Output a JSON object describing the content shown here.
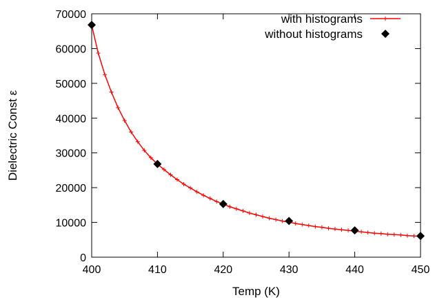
{
  "chart_data": {
    "type": "line",
    "title": "",
    "xlabel": "Temp (K)",
    "ylabel": "Dielectric Const ε",
    "xlim": [
      400,
      450
    ],
    "ylim": [
      0,
      70000
    ],
    "xticks": [
      400,
      410,
      420,
      430,
      440,
      450
    ],
    "yticks": [
      0,
      10000,
      20000,
      30000,
      40000,
      50000,
      60000,
      70000
    ],
    "grid": false,
    "legend": "top-right",
    "series": [
      {
        "name": "with histograms",
        "style": "line-with-plus-markers",
        "color": "#ff0000",
        "x": [
          400,
          401,
          402,
          403,
          404,
          405,
          406,
          407,
          408,
          409,
          410,
          411,
          412,
          413,
          414,
          415,
          416,
          417,
          418,
          419,
          420,
          421,
          422,
          423,
          424,
          425,
          426,
          427,
          428,
          429,
          430,
          431,
          432,
          433,
          434,
          435,
          436,
          437,
          438,
          439,
          440,
          441,
          442,
          443,
          444,
          445,
          446,
          447,
          448,
          449,
          450
        ],
        "y": [
          66700,
          58700,
          52500,
          47500,
          43000,
          39300,
          36000,
          33200,
          30700,
          28600,
          26800,
          25200,
          23700,
          22300,
          21000,
          19900,
          18800,
          17800,
          16900,
          16000,
          15300,
          14500,
          13900,
          13300,
          12700,
          12200,
          11700,
          11200,
          10800,
          10400,
          10100,
          9700,
          9400,
          9100,
          8800,
          8600,
          8300,
          8100,
          7900,
          7700,
          7500,
          7300,
          7100,
          6900,
          6800,
          6600,
          6500,
          6400,
          6200,
          6100,
          6000
        ]
      },
      {
        "name": "without histograms",
        "style": "diamond-markers",
        "color": "#000000",
        "x": [
          400,
          410,
          420,
          430,
          440,
          450
        ],
        "y": [
          66800,
          26800,
          15300,
          10400,
          7700,
          6100
        ]
      }
    ]
  }
}
